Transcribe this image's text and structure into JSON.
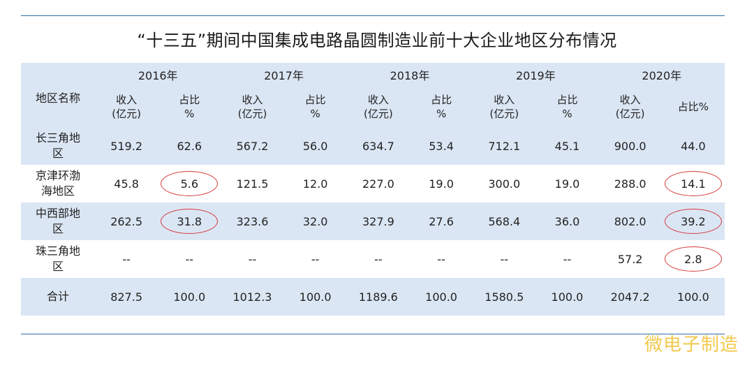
{
  "title": "“十三五”期间中国集成电路晶圆制造业前十大企业地区分布情况",
  "header": {
    "region_label": "地区名称",
    "years": [
      "2016年",
      "2017年",
      "2018年",
      "2019年",
      "2020年"
    ],
    "sub_labels": [
      [
        "收入\n(亿元)",
        "占比\n%"
      ],
      [
        "收入\n(亿元)",
        "占比\n%"
      ],
      [
        "收入\n(亿元)",
        "占比\n%"
      ],
      [
        "收入\n(亿元)",
        "占比\n%"
      ],
      [
        "收入\n(亿元)",
        "占比%"
      ]
    ]
  },
  "rows": [
    {
      "region": "长三角地\n区",
      "values": [
        "519.2",
        "62.6",
        "567.2",
        "56.0",
        "634.7",
        "53.4",
        "712.1",
        "45.1",
        "900.0",
        "44.0"
      ]
    },
    {
      "region": "京津环渤\n海地区",
      "values": [
        "45.8",
        "5.6",
        "121.5",
        "12.0",
        "227.0",
        "19.0",
        "300.0",
        "19.0",
        "288.0",
        "14.1"
      ]
    },
    {
      "region": "中西部地\n区",
      "values": [
        "262.5",
        "31.8",
        "323.6",
        "32.0",
        "327.9",
        "27.6",
        "568.4",
        "36.0",
        "802.0",
        "39.2"
      ]
    },
    {
      "region": "珠三角地\n区",
      "values": [
        "--",
        "--",
        "--",
        "--",
        "--",
        "--",
        "--",
        "--",
        "57.2",
        "2.8"
      ]
    },
    {
      "region": "合计",
      "values": [
        "827.5",
        "100.0",
        "1012.3",
        "100.0",
        "1189.6",
        "100.0",
        "1580.5",
        "100.0",
        "2047.2",
        "100.0"
      ]
    }
  ],
  "annotation_color": "#d63a3a",
  "watermark": "微电子制造"
}
